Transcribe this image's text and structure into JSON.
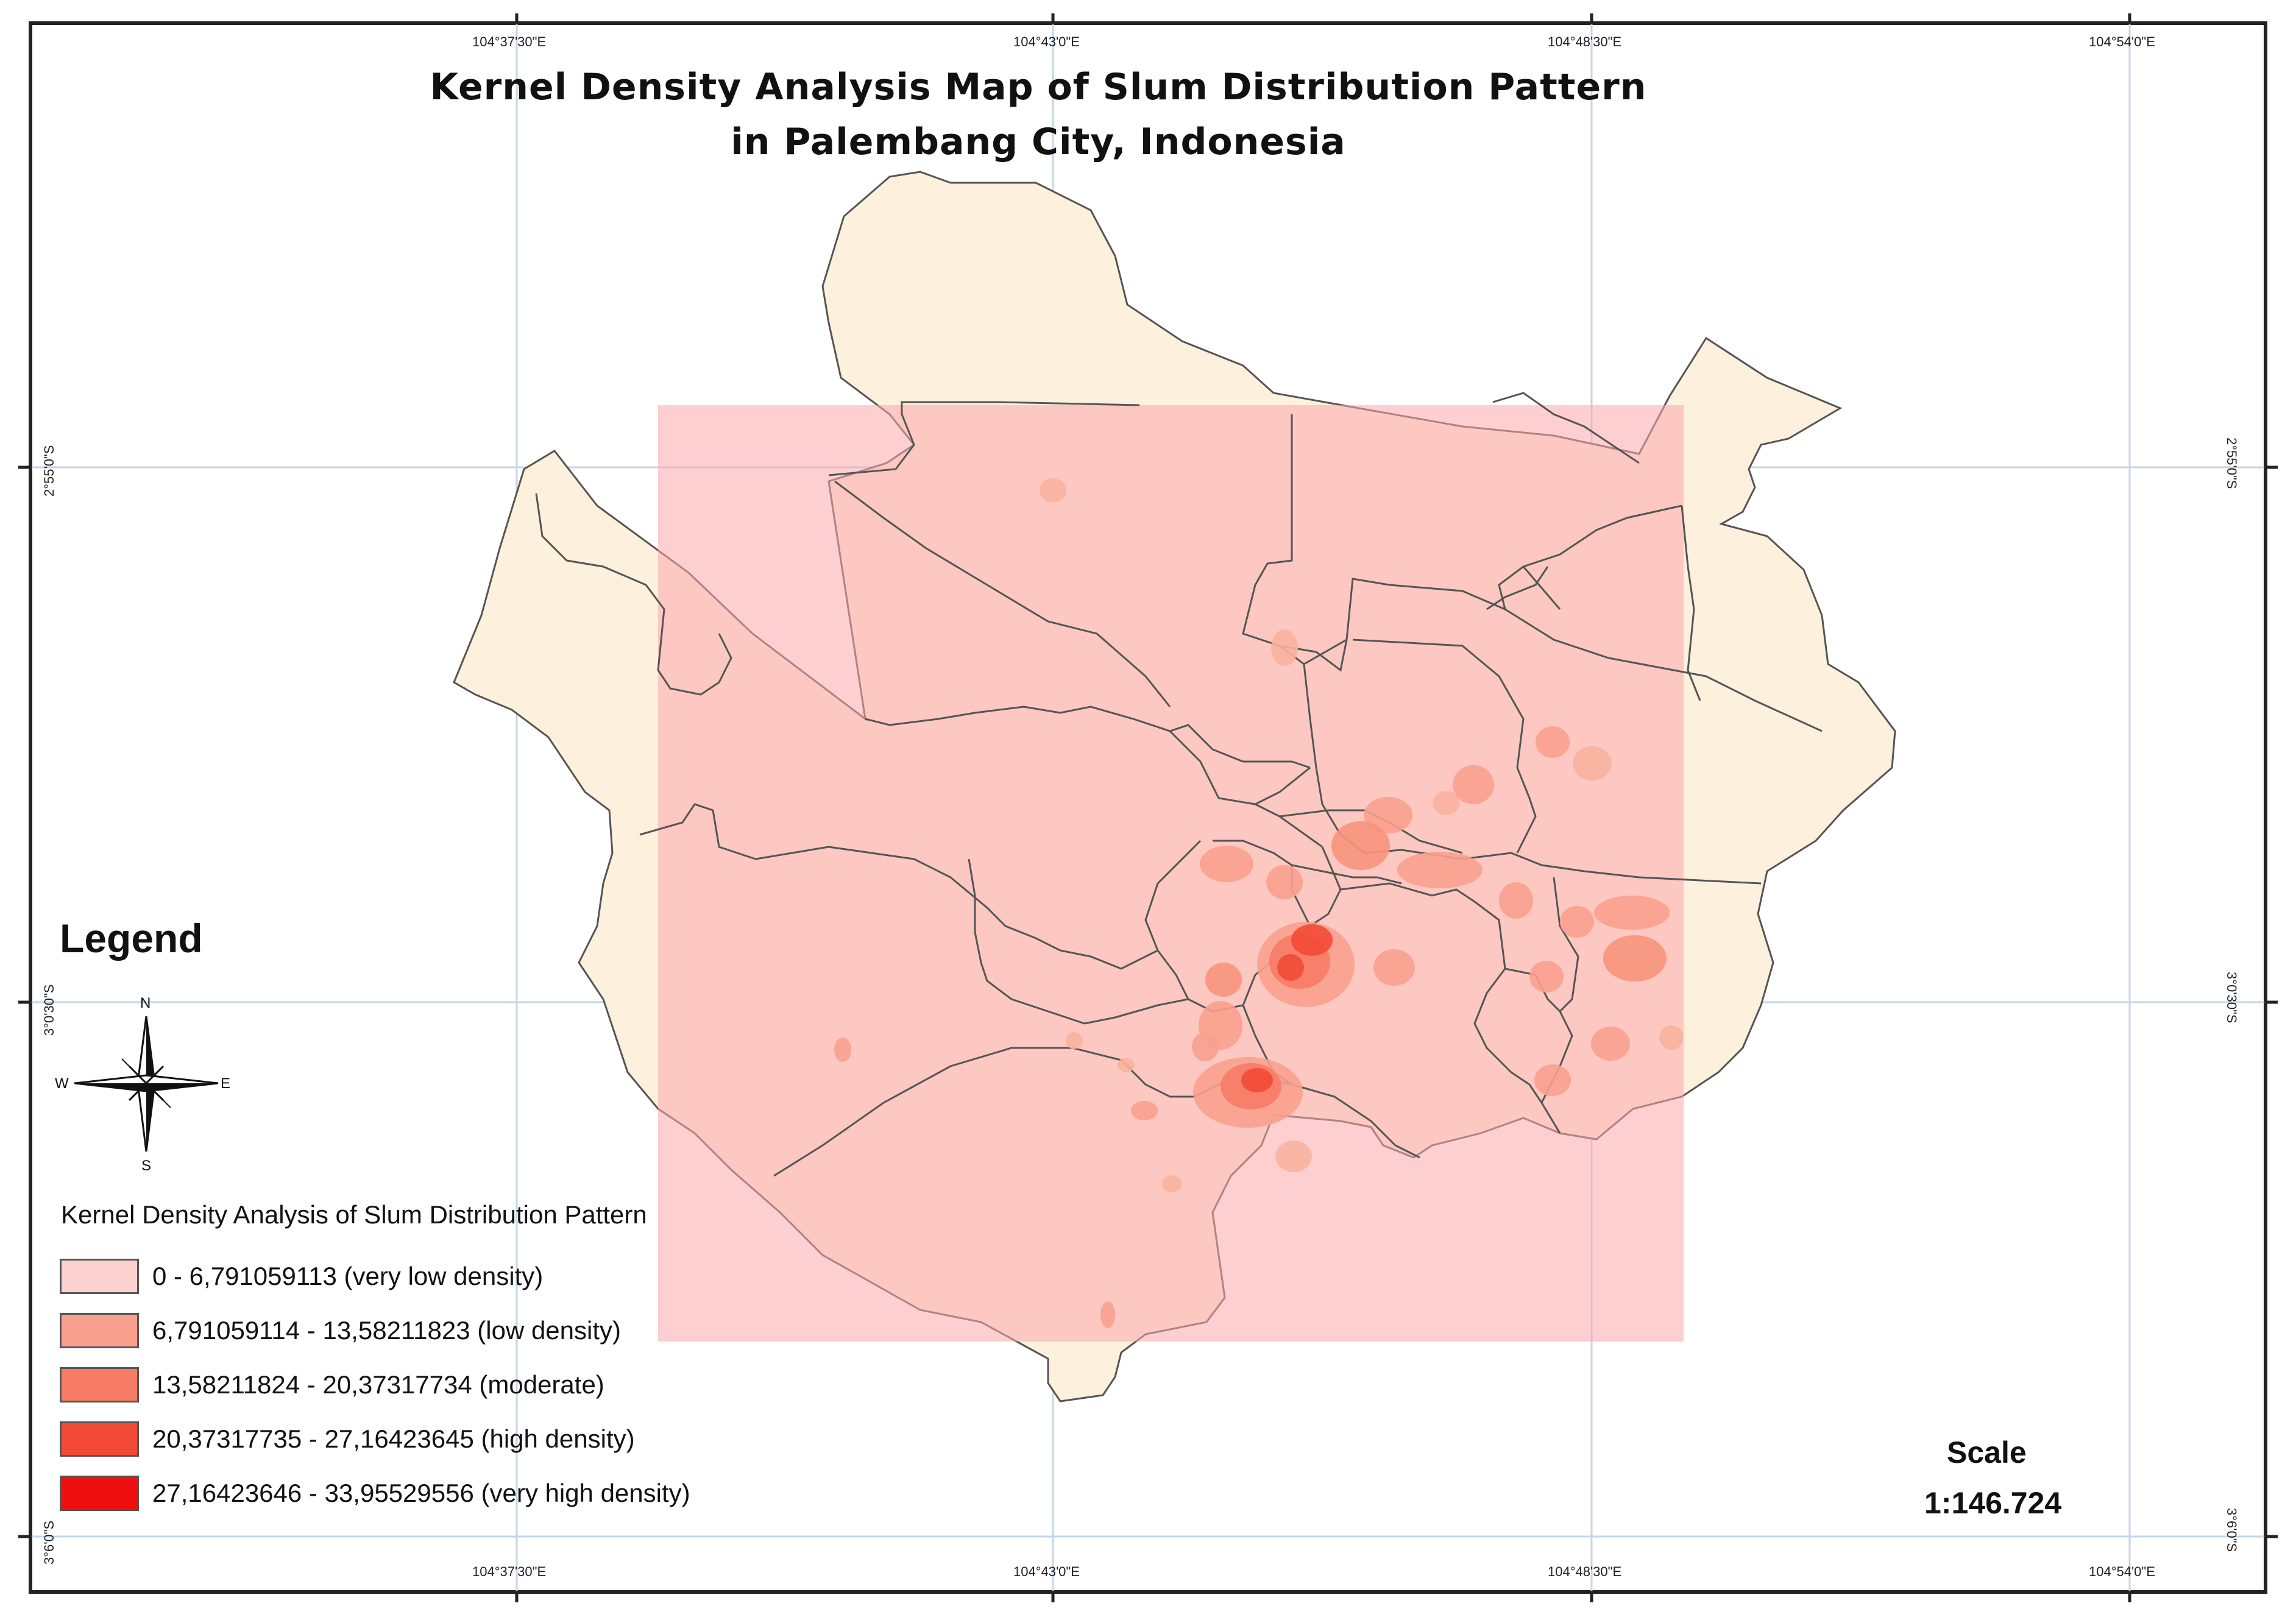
{
  "title": {
    "line1": "Kernel Density Analysis Map of Slum Distribution Pattern",
    "line2": "in Palembang City, Indonesia"
  },
  "grid": {
    "longitudes": [
      "104°37'30\"E",
      "104°43'0\"E",
      "104°48'30\"E",
      "104°54'0\"E"
    ],
    "latitudes": [
      "2°55'0\"S",
      "3°0'30\"S",
      "3°6'0\"S"
    ]
  },
  "legend": {
    "heading": "Legend",
    "subtitle": "Kernel Density Analysis of Slum Distribution Pattern",
    "classes": [
      {
        "label": "0 - 6,791059113 (very low density)",
        "color": "#fdd0d0"
      },
      {
        "label": "6,791059114 - 13,58211823 (low density)",
        "color": "#f9a08e"
      },
      {
        "label": "13,58211824 - 20,37317734 (moderate)",
        "color": "#f77c66"
      },
      {
        "label": "20,37317735 - 27,16423645 (high density)",
        "color": "#f24a36"
      },
      {
        "label": "27,16423646 - 33,95529556 (very high density)",
        "color": "#ee1010"
      }
    ]
  },
  "compass": {
    "n": "N",
    "s": "S",
    "e": "E",
    "w": "W"
  },
  "scale": {
    "label": "Scale",
    "value": "1:146.724"
  },
  "colors": {
    "city_fill": "#fdf0dc",
    "density_raster": "#fdd0d0",
    "boundary": "#555555",
    "graticule": "#c5d6e6"
  }
}
